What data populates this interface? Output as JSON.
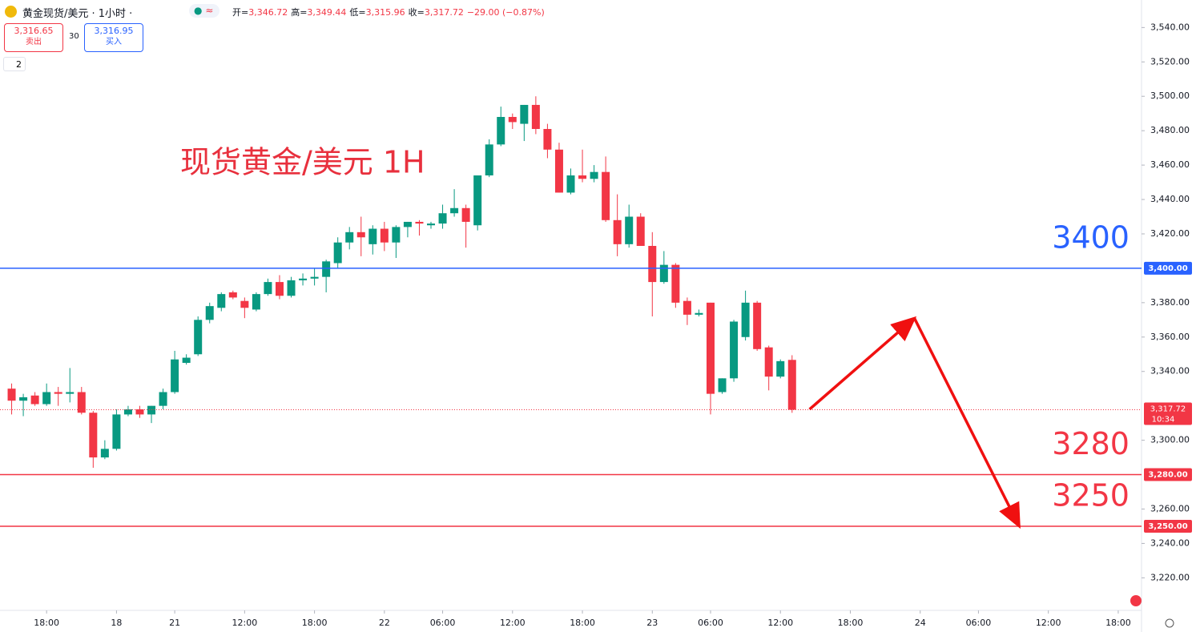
{
  "header": {
    "symbol": "黄金现货/美元 · 1小时 ·",
    "icon": "≈",
    "ohlc": [
      {
        "label": "开=",
        "value": "3,346.72"
      },
      {
        "label": "高=",
        "value": "3,349.44"
      },
      {
        "label": "低=",
        "value": "3,315.96"
      },
      {
        "label": "收=",
        "value": "3,317.72"
      }
    ],
    "change": "−29.00 (−0.87%)",
    "sell": {
      "price": "3,316.65",
      "label": "卖出"
    },
    "spread": "30",
    "buy": {
      "price": "3,316.95",
      "label": "买入"
    },
    "indicators": "2"
  },
  "chart_data": {
    "type": "candlestick",
    "title": "现货黄金/美元 1H",
    "up_color": "#089981",
    "down_color": "#f23645",
    "ylim": [
      3202,
      3556
    ],
    "xlim": [
      -1,
      97
    ],
    "yticks": [
      {
        "value": 3540,
        "label": "3,540.00"
      },
      {
        "value": 3520,
        "label": "3,520.00"
      },
      {
        "value": 3500,
        "label": "3,500.00"
      },
      {
        "value": 3480,
        "label": "3,480.00"
      },
      {
        "value": 3460,
        "label": "3,460.00"
      },
      {
        "value": 3440,
        "label": "3,440.00"
      },
      {
        "value": 3420,
        "label": "3,420.00"
      },
      {
        "value": 3380,
        "label": "3,380.00"
      },
      {
        "value": 3360,
        "label": "3,360.00"
      },
      {
        "value": 3340,
        "label": "3,340.00"
      },
      {
        "value": 3300,
        "label": "3,300.00"
      },
      {
        "value": 3260,
        "label": "3,260.00"
      },
      {
        "value": 3240,
        "label": "3,240.00"
      },
      {
        "value": 3220,
        "label": "3,220.00"
      }
    ],
    "xticks": [
      {
        "value": 3,
        "label": "18:00"
      },
      {
        "value": 9,
        "label": "18"
      },
      {
        "value": 14,
        "label": "21"
      },
      {
        "value": 20,
        "label": "12:00"
      },
      {
        "value": 26,
        "label": "18:00"
      },
      {
        "value": 32,
        "label": "22"
      },
      {
        "value": 37,
        "label": "06:00"
      },
      {
        "value": 43,
        "label": "12:00"
      },
      {
        "value": 49,
        "label": "18:00"
      },
      {
        "value": 55,
        "label": "23"
      },
      {
        "value": 60,
        "label": "06:00"
      },
      {
        "value": 66,
        "label": "12:00"
      },
      {
        "value": 72,
        "label": "18:00"
      },
      {
        "value": 78,
        "label": "24"
      },
      {
        "value": 83,
        "label": "06:00"
      },
      {
        "value": 89,
        "label": "12:00"
      },
      {
        "value": 95,
        "label": "18:00"
      }
    ],
    "candles": [
      {
        "open": 3330,
        "high": 3333,
        "low": 3315,
        "close": 3323
      },
      {
        "open": 3323,
        "high": 3327,
        "low": 3314,
        "close": 3325
      },
      {
        "open": 3326,
        "high": 3328,
        "low": 3320,
        "close": 3321
      },
      {
        "open": 3321,
        "high": 3333,
        "low": 3320,
        "close": 3328
      },
      {
        "open": 3328,
        "high": 3331,
        "low": 3320,
        "close": 3327
      },
      {
        "open": 3327,
        "high": 3342,
        "low": 3322,
        "close": 3328
      },
      {
        "open": 3328,
        "high": 3331,
        "low": 3315,
        "close": 3316
      },
      {
        "open": 3316,
        "high": 3317,
        "low": 3284,
        "close": 3290
      },
      {
        "open": 3290,
        "high": 3300,
        "low": 3289,
        "close": 3295
      },
      {
        "open": 3295,
        "high": 3318,
        "low": 3294,
        "close": 3315
      },
      {
        "open": 3315,
        "high": 3320,
        "low": 3314,
        "close": 3318
      },
      {
        "open": 3318,
        "high": 3320,
        "low": 3313,
        "close": 3315
      },
      {
        "open": 3315,
        "high": 3320,
        "low": 3310,
        "close": 3320
      },
      {
        "open": 3320,
        "high": 3330,
        "low": 3318,
        "close": 3328
      },
      {
        "open": 3328,
        "high": 3352,
        "low": 3327,
        "close": 3347
      },
      {
        "open": 3345,
        "high": 3350,
        "low": 3344,
        "close": 3348
      },
      {
        "open": 3350,
        "high": 3372,
        "low": 3349,
        "close": 3370
      },
      {
        "open": 3370,
        "high": 3380,
        "low": 3368,
        "close": 3378
      },
      {
        "open": 3377,
        "high": 3386,
        "low": 3375,
        "close": 3385
      },
      {
        "open": 3386,
        "high": 3387,
        "low": 3382,
        "close": 3383
      },
      {
        "open": 3381,
        "high": 3383,
        "low": 3371,
        "close": 3377
      },
      {
        "open": 3376,
        "high": 3386,
        "low": 3375,
        "close": 3385
      },
      {
        "open": 3385,
        "high": 3394,
        "low": 3384,
        "close": 3392
      },
      {
        "open": 3392,
        "high": 3396,
        "low": 3382,
        "close": 3384
      },
      {
        "open": 3384,
        "high": 3395,
        "low": 3383,
        "close": 3393
      },
      {
        "open": 3393,
        "high": 3397,
        "low": 3390,
        "close": 3394
      },
      {
        "open": 3394,
        "high": 3400,
        "low": 3390,
        "close": 3395
      },
      {
        "open": 3395,
        "high": 3405,
        "low": 3386,
        "close": 3404
      },
      {
        "open": 3403,
        "high": 3418,
        "low": 3400,
        "close": 3415
      },
      {
        "open": 3415,
        "high": 3424,
        "low": 3411,
        "close": 3421
      },
      {
        "open": 3421,
        "high": 3430,
        "low": 3407,
        "close": 3418
      },
      {
        "open": 3414,
        "high": 3425,
        "low": 3408,
        "close": 3423
      },
      {
        "open": 3423,
        "high": 3427,
        "low": 3410,
        "close": 3415
      },
      {
        "open": 3415,
        "high": 3425,
        "low": 3406,
        "close": 3424
      },
      {
        "open": 3424,
        "high": 3427,
        "low": 3418,
        "close": 3427
      },
      {
        "open": 3427,
        "high": 3428,
        "low": 3419,
        "close": 3426
      },
      {
        "open": 3425,
        "high": 3427,
        "low": 3423,
        "close": 3426
      },
      {
        "open": 3426,
        "high": 3437,
        "low": 3423,
        "close": 3432
      },
      {
        "open": 3432,
        "high": 3446,
        "low": 3430,
        "close": 3435
      },
      {
        "open": 3435,
        "high": 3437,
        "low": 3412,
        "close": 3427
      },
      {
        "open": 3425,
        "high": 3454,
        "low": 3422,
        "close": 3454
      },
      {
        "open": 3454,
        "high": 3475,
        "low": 3453,
        "close": 3472
      },
      {
        "open": 3472,
        "high": 3494,
        "low": 3471,
        "close": 3488
      },
      {
        "open": 3488,
        "high": 3490,
        "low": 3481,
        "close": 3485
      },
      {
        "open": 3484,
        "high": 3495,
        "low": 3474,
        "close": 3495
      },
      {
        "open": 3495,
        "high": 3500,
        "low": 3478,
        "close": 3481
      },
      {
        "open": 3481,
        "high": 3484,
        "low": 3464,
        "close": 3469
      },
      {
        "open": 3469,
        "high": 3473,
        "low": 3444,
        "close": 3444
      },
      {
        "open": 3444,
        "high": 3458,
        "low": 3443,
        "close": 3454
      },
      {
        "open": 3454,
        "high": 3469,
        "low": 3450,
        "close": 3452
      },
      {
        "open": 3452,
        "high": 3460,
        "low": 3450,
        "close": 3456
      },
      {
        "open": 3456,
        "high": 3465,
        "low": 3427,
        "close": 3428
      },
      {
        "open": 3428,
        "high": 3443,
        "low": 3407,
        "close": 3414
      },
      {
        "open": 3414,
        "high": 3437,
        "low": 3412,
        "close": 3430
      },
      {
        "open": 3430,
        "high": 3432,
        "low": 3413,
        "close": 3413
      },
      {
        "open": 3413,
        "high": 3421,
        "low": 3372,
        "close": 3392
      },
      {
        "open": 3392,
        "high": 3410,
        "low": 3391,
        "close": 3402
      },
      {
        "open": 3402,
        "high": 3403,
        "low": 3377,
        "close": 3380
      },
      {
        "open": 3381,
        "high": 3383,
        "low": 3367,
        "close": 3373
      },
      {
        "open": 3373,
        "high": 3376,
        "low": 3372,
        "close": 3374
      },
      {
        "open": 3380,
        "high": 3380,
        "low": 3315,
        "close": 3327
      },
      {
        "open": 3328,
        "high": 3336,
        "low": 3327,
        "close": 3336
      },
      {
        "open": 3336,
        "high": 3370,
        "low": 3334,
        "close": 3369
      },
      {
        "open": 3360,
        "high": 3387,
        "low": 3358,
        "close": 3380
      },
      {
        "open": 3380,
        "high": 3381,
        "low": 3352,
        "close": 3353
      },
      {
        "open": 3354,
        "high": 3355,
        "low": 3329,
        "close": 3337
      },
      {
        "open": 3337,
        "high": 3347,
        "low": 3336,
        "close": 3346
      },
      {
        "open": 3346.72,
        "high": 3349.44,
        "low": 3315.96,
        "close": 3317.72
      }
    ],
    "hlines": [
      {
        "value": 3400,
        "label": "3,400.00",
        "annotation": "3400",
        "color": "#2962ff"
      },
      {
        "value": 3280,
        "label": "3,280.00",
        "annotation": "3280",
        "color": "#f23645"
      },
      {
        "value": 3250,
        "label": "3,250.00",
        "annotation": "3250",
        "color": "#f23645"
      }
    ],
    "last_price": {
      "value": 3317.72,
      "label": "3,317.72",
      "countdown": "10:34"
    },
    "arrow_path": {
      "x": [
        68.5,
        77.5,
        86.5
      ],
      "y": [
        3318,
        3371,
        3250
      ],
      "color": "#f01010"
    }
  }
}
